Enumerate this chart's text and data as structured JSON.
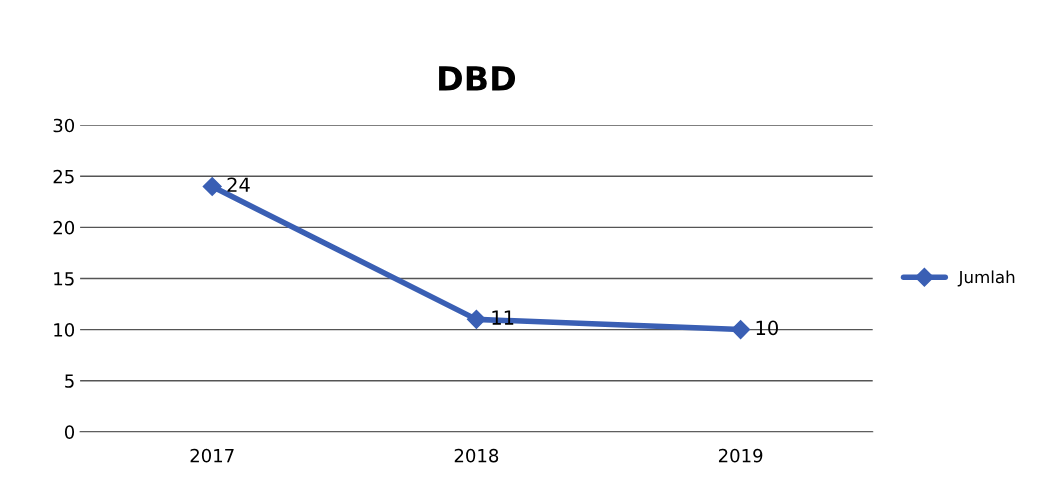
{
  "chart_data": {
    "type": "line",
    "title": "DBD",
    "categories": [
      "2017",
      "2018",
      "2019"
    ],
    "series": [
      {
        "name": "Jumlah",
        "color": "#3a5fb4",
        "values": [
          24,
          11,
          10
        ]
      }
    ],
    "ylim": [
      0,
      30
    ],
    "yticks": [
      0,
      5,
      10,
      15,
      20,
      25,
      30
    ],
    "grid": "y",
    "legend": "right",
    "marker": "diamond",
    "line_style": "solid",
    "data_labels": true
  }
}
